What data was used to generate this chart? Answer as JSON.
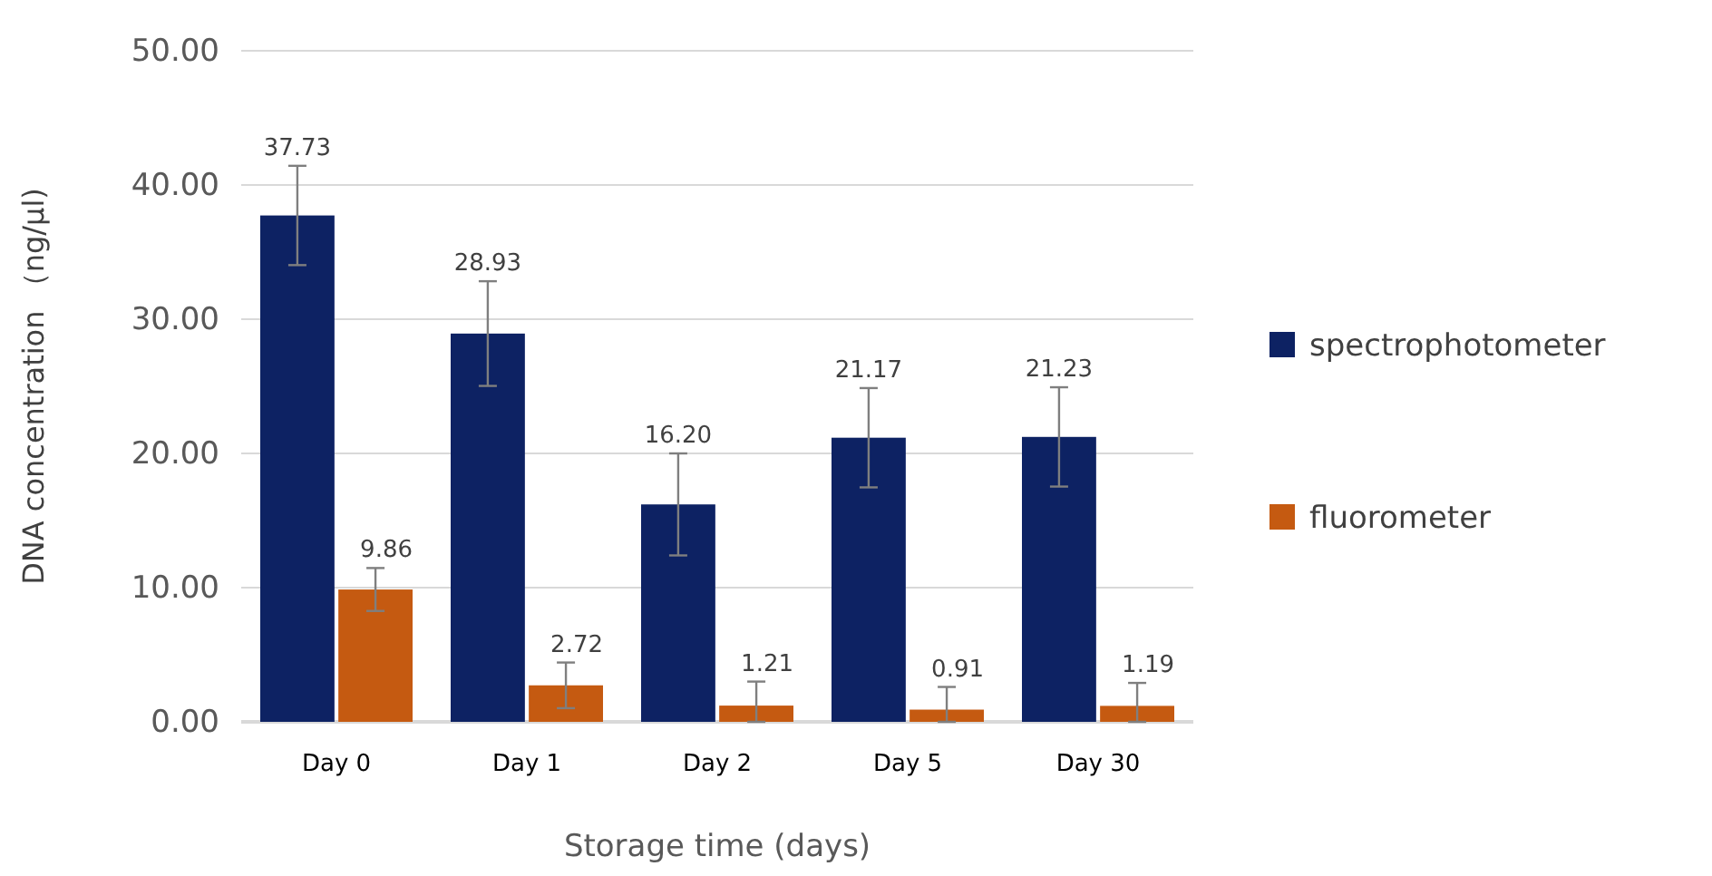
{
  "chart_data": {
    "type": "bar",
    "xlabel": "Storage time (days)",
    "ylabel": "DNA concentration （ng/µl)",
    "categories": [
      "Day 0",
      "Day 1",
      "Day 2",
      "Day 5",
      "Day 30"
    ],
    "series": [
      {
        "name": "spectrophotometer",
        "color": "#0d2263",
        "values": [
          37.73,
          28.93,
          16.2,
          21.17,
          21.23
        ],
        "value_labels": [
          "37.73",
          "28.93",
          "16.20",
          "21.17",
          "21.23"
        ],
        "errors": [
          3.7,
          3.9,
          3.8,
          3.7,
          3.7
        ]
      },
      {
        "name": "fluorometer",
        "color": "#c55a11",
        "values": [
          9.86,
          2.72,
          1.21,
          0.91,
          1.19
        ],
        "value_labels": [
          "9.86",
          "2.72",
          "1.21",
          "0.91",
          "1.19"
        ],
        "errors": [
          1.6,
          1.7,
          [
            0,
            3.0
          ],
          [
            0,
            2.6
          ],
          [
            0,
            2.9
          ]
        ]
      }
    ],
    "ylim": [
      0,
      50
    ],
    "yticks": [
      {
        "value": 0,
        "label": "0.00"
      },
      {
        "value": 10,
        "label": "10.00"
      },
      {
        "value": 20,
        "label": "20.00"
      },
      {
        "value": 30,
        "label": "30.00"
      },
      {
        "value": 40,
        "label": "40.00"
      },
      {
        "value": 50,
        "label": "50.00"
      }
    ],
    "grid": "y",
    "legend": "right"
  }
}
